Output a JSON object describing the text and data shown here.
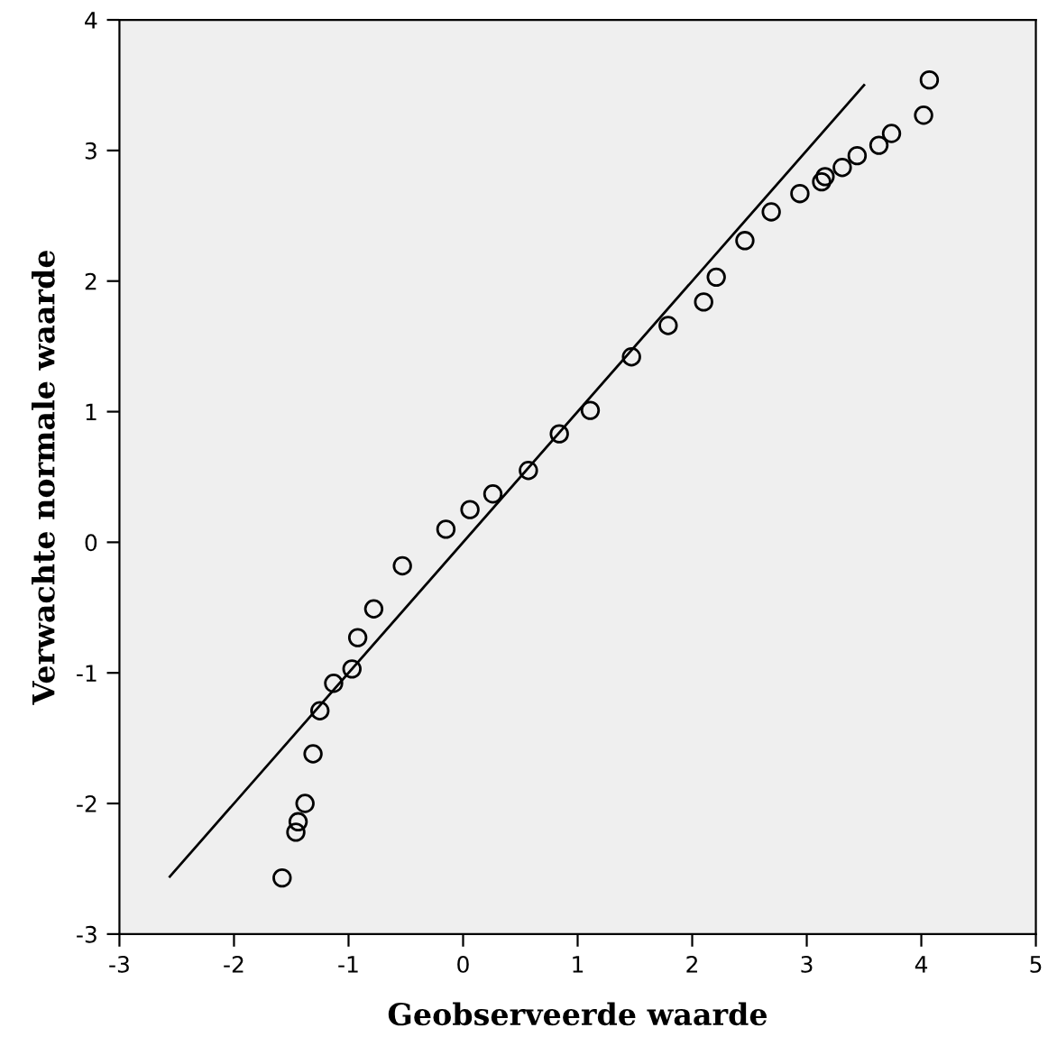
{
  "chart_data": {
    "type": "scatter",
    "xlabel": "Geobserveerde waarde",
    "ylabel": "Verwachte normale waarde",
    "xlim": [
      -3,
      5
    ],
    "xticks": [
      -3,
      -2,
      -1,
      0,
      1,
      2,
      3,
      4,
      5
    ],
    "ylim": [
      -3,
      4
    ],
    "yticks": [
      -3,
      -2,
      -1,
      0,
      1,
      2,
      3,
      4
    ],
    "grid": false,
    "legend": false,
    "series": [
      {
        "color": "#000000",
        "marker": "circle",
        "x": [
          -1.58,
          -1.46,
          -1.44,
          -1.38,
          -1.31,
          -1.25,
          -1.13,
          -0.97,
          -0.92,
          -0.78,
          -0.53,
          -0.15,
          0.06,
          0.26,
          0.57,
          0.84,
          1.11,
          1.47,
          1.79,
          2.1,
          2.21,
          2.46,
          2.69,
          2.94,
          3.13,
          3.16,
          3.31,
          3.44,
          3.63,
          3.74,
          4.02,
          4.07
        ],
        "values": [
          -2.57,
          -2.22,
          -2.14,
          -2.0,
          -1.62,
          -1.29,
          -1.08,
          -0.97,
          -0.73,
          -0.51,
          -0.18,
          0.1,
          0.25,
          0.37,
          0.55,
          0.83,
          1.01,
          1.42,
          1.66,
          1.84,
          2.03,
          2.31,
          2.53,
          2.67,
          2.76,
          2.8,
          2.87,
          2.96,
          3.04,
          3.13,
          3.27,
          3.54
        ]
      },
      {
        "type": "line",
        "color": "#000000",
        "marker": "none",
        "line_style": "solid",
        "x": [
          -2.56,
          3.5
        ],
        "values": [
          -2.56,
          3.5
        ]
      }
    ]
  }
}
